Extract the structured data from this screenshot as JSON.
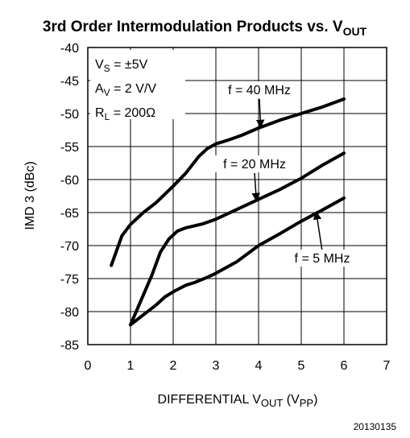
{
  "chart_data": {
    "type": "line",
    "title": {
      "main": "3rd Order Intermodulation Products vs. V",
      "sub": "OUT"
    },
    "xlabel": {
      "pre": "DIFFERENTIAL V",
      "sub1": "OUT",
      "mid": " (V",
      "sub2": "PP",
      "post": ")"
    },
    "ylabel": "IMD 3 (dBc)",
    "xlim": [
      0,
      7
    ],
    "ylim": [
      -85,
      -40
    ],
    "xticks": [
      "0",
      "1",
      "2",
      "3",
      "4",
      "5",
      "6",
      "7"
    ],
    "yticks": [
      "-40",
      "-45",
      "-50",
      "-55",
      "-60",
      "-65",
      "-70",
      "-75",
      "-80",
      "-85"
    ],
    "grid": true,
    "legend": "none",
    "conditions": [
      {
        "pre": "V",
        "sub": "S",
        "post": " = ±5V"
      },
      {
        "pre": "A",
        "sub": "V",
        "post": " = 2 V/V"
      },
      {
        "pre": "R",
        "sub": "L",
        "post": " = 200Ω"
      }
    ],
    "series": [
      {
        "name": "f = 40 MHz",
        "x": [
          0.55,
          0.8,
          1.0,
          1.3,
          1.6,
          2.0,
          2.3,
          2.6,
          2.8,
          3.0,
          3.3,
          3.6,
          4.0,
          4.5,
          5.0,
          5.5,
          6.0
        ],
        "y": [
          -73.0,
          -68.5,
          -66.8,
          -65.0,
          -63.5,
          -61.0,
          -59.0,
          -56.5,
          -55.3,
          -54.6,
          -54.0,
          -53.3,
          -52.2,
          -51.0,
          -50.0,
          -49.0,
          -47.8
        ]
      },
      {
        "name": "f = 20 MHz",
        "x": [
          1.0,
          1.2,
          1.5,
          1.7,
          1.9,
          2.1,
          2.3,
          2.5,
          2.7,
          3.0,
          3.5,
          4.0,
          4.5,
          5.0,
          5.5,
          6.0
        ],
        "y": [
          -82.0,
          -79.0,
          -74.5,
          -71.0,
          -69.0,
          -67.8,
          -67.3,
          -67.0,
          -66.7,
          -66.0,
          -64.5,
          -63.0,
          -61.5,
          -59.8,
          -57.8,
          -56.0
        ]
      },
      {
        "name": "f = 5 MHz",
        "x": [
          1.0,
          1.3,
          1.6,
          1.8,
          2.0,
          2.3,
          2.5,
          2.8,
          3.0,
          3.5,
          4.0,
          4.5,
          5.0,
          5.5,
          6.0
        ],
        "y": [
          -82.0,
          -80.5,
          -79.0,
          -77.8,
          -77.0,
          -76.0,
          -75.6,
          -74.8,
          -74.2,
          -72.4,
          -70.0,
          -68.2,
          -66.3,
          -64.6,
          -62.8
        ]
      }
    ],
    "annotations": [
      {
        "text": "f = 40 MHz",
        "series": 0,
        "arrow_to": {
          "x": 4.05,
          "y": -52.1
        }
      },
      {
        "text": "f = 20 MHz",
        "series": 1,
        "arrow_to": {
          "x": 3.95,
          "y": -63.2
        }
      },
      {
        "text": "f = 5 MHz",
        "series": 2,
        "arrow_to": {
          "x": 5.35,
          "y": -64.9
        }
      }
    ]
  },
  "figure_id": "20130135"
}
